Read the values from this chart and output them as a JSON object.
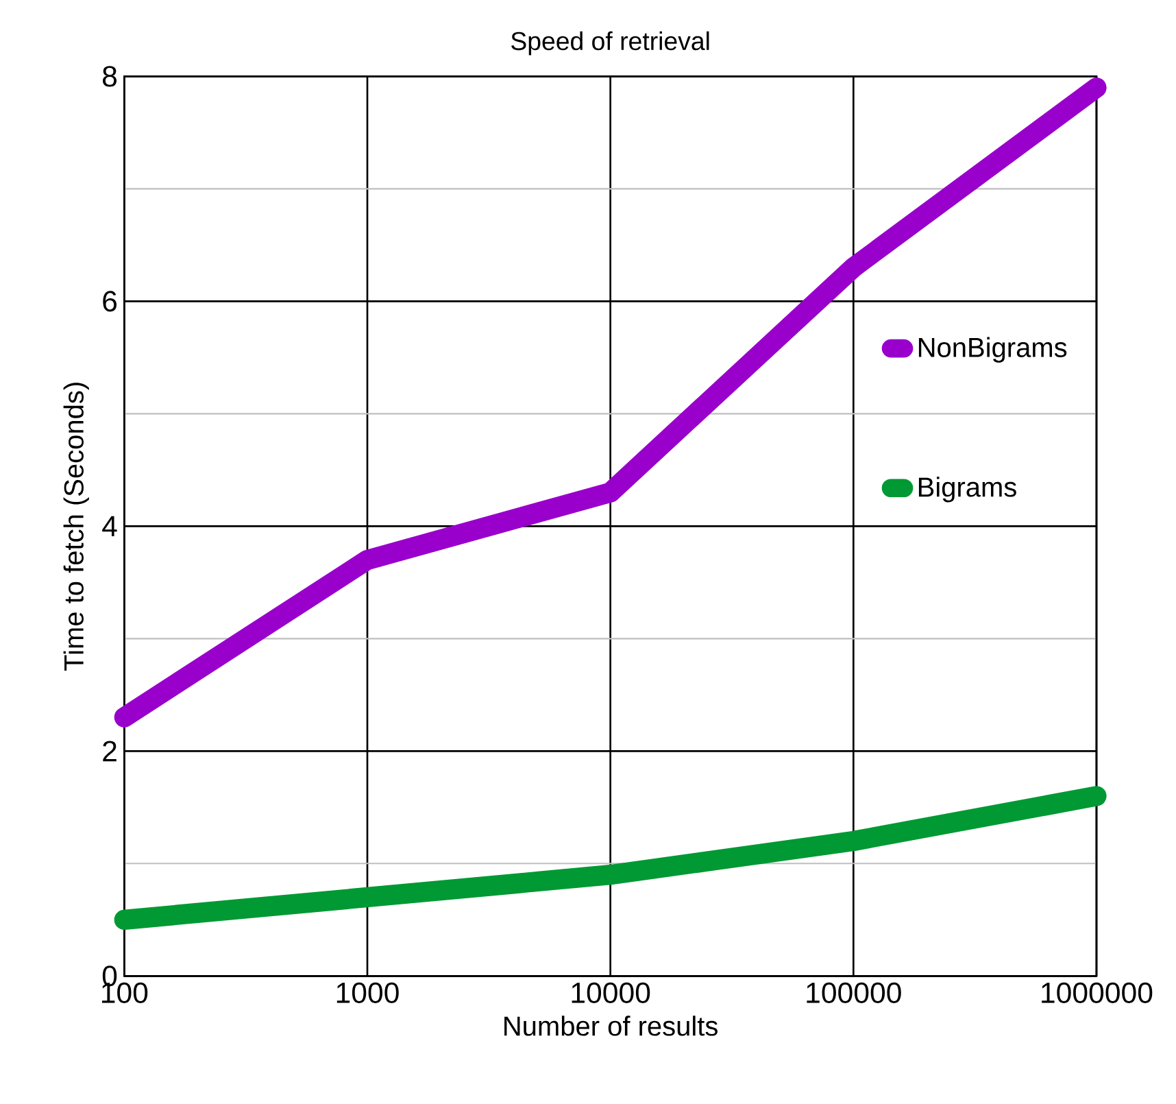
{
  "chart_data": {
    "type": "line",
    "title": "Speed of retrieval",
    "xlabel": "Number of results",
    "ylabel": "Time to  fetch  (Seconds)",
    "categories": [
      "100",
      "1000",
      "10000",
      "100000",
      "1000000"
    ],
    "series": [
      {
        "name": "NonBigrams",
        "color": "#9900cc",
        "values": [
          2.3,
          3.7,
          4.3,
          6.3,
          7.9
        ]
      },
      {
        "name": "Bigrams",
        "color": "#009933",
        "values": [
          0.5,
          0.7,
          0.9,
          1.2,
          1.6
        ]
      }
    ],
    "ylim": [
      0,
      8
    ],
    "yticks": [
      0,
      {
        "value": 1,
        "label": null
      },
      2,
      {
        "value": 3,
        "label": null
      },
      4,
      {
        "value": 5,
        "label": null
      },
      6,
      {
        "value": 7,
        "label": null
      },
      8
    ],
    "grid": true,
    "legend": "right",
    "marker": "none",
    "line_style": "solid"
  }
}
